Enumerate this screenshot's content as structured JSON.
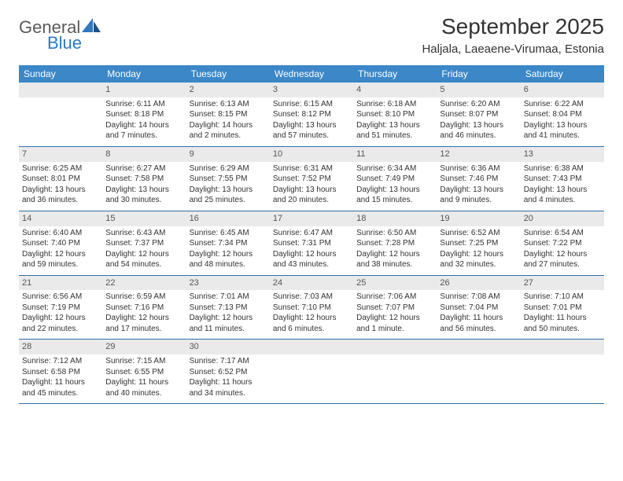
{
  "logo": {
    "text1": "General",
    "text2": "Blue"
  },
  "title": "September 2025",
  "location": "Haljala, Laeaene-Virumaa, Estonia",
  "header_bg": "#3b87c8",
  "dayheaders": [
    "Sunday",
    "Monday",
    "Tuesday",
    "Wednesday",
    "Thursday",
    "Friday",
    "Saturday"
  ],
  "weeks": [
    [
      {
        "num": "",
        "lines": []
      },
      {
        "num": "1",
        "lines": [
          "Sunrise: 6:11 AM",
          "Sunset: 8:18 PM",
          "Daylight: 14 hours and 7 minutes."
        ]
      },
      {
        "num": "2",
        "lines": [
          "Sunrise: 6:13 AM",
          "Sunset: 8:15 PM",
          "Daylight: 14 hours and 2 minutes."
        ]
      },
      {
        "num": "3",
        "lines": [
          "Sunrise: 6:15 AM",
          "Sunset: 8:12 PM",
          "Daylight: 13 hours and 57 minutes."
        ]
      },
      {
        "num": "4",
        "lines": [
          "Sunrise: 6:18 AM",
          "Sunset: 8:10 PM",
          "Daylight: 13 hours and 51 minutes."
        ]
      },
      {
        "num": "5",
        "lines": [
          "Sunrise: 6:20 AM",
          "Sunset: 8:07 PM",
          "Daylight: 13 hours and 46 minutes."
        ]
      },
      {
        "num": "6",
        "lines": [
          "Sunrise: 6:22 AM",
          "Sunset: 8:04 PM",
          "Daylight: 13 hours and 41 minutes."
        ]
      }
    ],
    [
      {
        "num": "7",
        "lines": [
          "Sunrise: 6:25 AM",
          "Sunset: 8:01 PM",
          "Daylight: 13 hours and 36 minutes."
        ]
      },
      {
        "num": "8",
        "lines": [
          "Sunrise: 6:27 AM",
          "Sunset: 7:58 PM",
          "Daylight: 13 hours and 30 minutes."
        ]
      },
      {
        "num": "9",
        "lines": [
          "Sunrise: 6:29 AM",
          "Sunset: 7:55 PM",
          "Daylight: 13 hours and 25 minutes."
        ]
      },
      {
        "num": "10",
        "lines": [
          "Sunrise: 6:31 AM",
          "Sunset: 7:52 PM",
          "Daylight: 13 hours and 20 minutes."
        ]
      },
      {
        "num": "11",
        "lines": [
          "Sunrise: 6:34 AM",
          "Sunset: 7:49 PM",
          "Daylight: 13 hours and 15 minutes."
        ]
      },
      {
        "num": "12",
        "lines": [
          "Sunrise: 6:36 AM",
          "Sunset: 7:46 PM",
          "Daylight: 13 hours and 9 minutes."
        ]
      },
      {
        "num": "13",
        "lines": [
          "Sunrise: 6:38 AM",
          "Sunset: 7:43 PM",
          "Daylight: 13 hours and 4 minutes."
        ]
      }
    ],
    [
      {
        "num": "14",
        "lines": [
          "Sunrise: 6:40 AM",
          "Sunset: 7:40 PM",
          "Daylight: 12 hours and 59 minutes."
        ]
      },
      {
        "num": "15",
        "lines": [
          "Sunrise: 6:43 AM",
          "Sunset: 7:37 PM",
          "Daylight: 12 hours and 54 minutes."
        ]
      },
      {
        "num": "16",
        "lines": [
          "Sunrise: 6:45 AM",
          "Sunset: 7:34 PM",
          "Daylight: 12 hours and 48 minutes."
        ]
      },
      {
        "num": "17",
        "lines": [
          "Sunrise: 6:47 AM",
          "Sunset: 7:31 PM",
          "Daylight: 12 hours and 43 minutes."
        ]
      },
      {
        "num": "18",
        "lines": [
          "Sunrise: 6:50 AM",
          "Sunset: 7:28 PM",
          "Daylight: 12 hours and 38 minutes."
        ]
      },
      {
        "num": "19",
        "lines": [
          "Sunrise: 6:52 AM",
          "Sunset: 7:25 PM",
          "Daylight: 12 hours and 32 minutes."
        ]
      },
      {
        "num": "20",
        "lines": [
          "Sunrise: 6:54 AM",
          "Sunset: 7:22 PM",
          "Daylight: 12 hours and 27 minutes."
        ]
      }
    ],
    [
      {
        "num": "21",
        "lines": [
          "Sunrise: 6:56 AM",
          "Sunset: 7:19 PM",
          "Daylight: 12 hours and 22 minutes."
        ]
      },
      {
        "num": "22",
        "lines": [
          "Sunrise: 6:59 AM",
          "Sunset: 7:16 PM",
          "Daylight: 12 hours and 17 minutes."
        ]
      },
      {
        "num": "23",
        "lines": [
          "Sunrise: 7:01 AM",
          "Sunset: 7:13 PM",
          "Daylight: 12 hours and 11 minutes."
        ]
      },
      {
        "num": "24",
        "lines": [
          "Sunrise: 7:03 AM",
          "Sunset: 7:10 PM",
          "Daylight: 12 hours and 6 minutes."
        ]
      },
      {
        "num": "25",
        "lines": [
          "Sunrise: 7:06 AM",
          "Sunset: 7:07 PM",
          "Daylight: 12 hours and 1 minute."
        ]
      },
      {
        "num": "26",
        "lines": [
          "Sunrise: 7:08 AM",
          "Sunset: 7:04 PM",
          "Daylight: 11 hours and 56 minutes."
        ]
      },
      {
        "num": "27",
        "lines": [
          "Sunrise: 7:10 AM",
          "Sunset: 7:01 PM",
          "Daylight: 11 hours and 50 minutes."
        ]
      }
    ],
    [
      {
        "num": "28",
        "lines": [
          "Sunrise: 7:12 AM",
          "Sunset: 6:58 PM",
          "Daylight: 11 hours and 45 minutes."
        ]
      },
      {
        "num": "29",
        "lines": [
          "Sunrise: 7:15 AM",
          "Sunset: 6:55 PM",
          "Daylight: 11 hours and 40 minutes."
        ]
      },
      {
        "num": "30",
        "lines": [
          "Sunrise: 7:17 AM",
          "Sunset: 6:52 PM",
          "Daylight: 11 hours and 34 minutes."
        ]
      },
      {
        "num": "",
        "lines": []
      },
      {
        "num": "",
        "lines": []
      },
      {
        "num": "",
        "lines": []
      },
      {
        "num": "",
        "lines": []
      }
    ]
  ]
}
